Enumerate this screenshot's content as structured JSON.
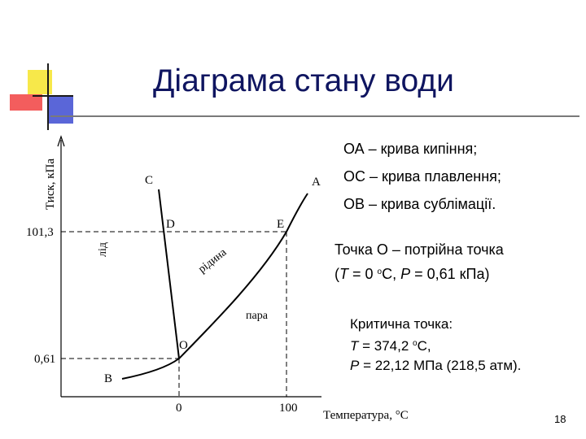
{
  "title": "Діаграма стану води",
  "diagram": {
    "y_axis_label": "Тиск, кПа",
    "x_axis_label": "Температура, °С",
    "y_tick_high": "101,3",
    "y_tick_low": "0,61",
    "x_tick_zero": "0",
    "x_tick_hundred": "100",
    "points": {
      "A": "A",
      "B": "B",
      "C": "C",
      "D": "D",
      "E": "E",
      "O": "O"
    },
    "regions": {
      "ice": "лід",
      "liquid": "рідина",
      "vapor": "пара"
    }
  },
  "legend": {
    "oa": {
      "term": "ОА",
      "rest": " – крива кипіння;"
    },
    "oc": {
      "term": "ОС",
      "rest": " – крива плавлення;"
    },
    "ob": {
      "term": "ОВ",
      "rest": " – крива  сублімації."
    }
  },
  "triple_point": {
    "line1": "Точка О – потрійна точка",
    "open": "(",
    "t_var": "T",
    "t_eq": " = 0 ",
    "deg": "o",
    "t_unit": "С, ",
    "p_var": "P",
    "p_eq": " = 0,61 кПа)"
  },
  "critical_point": {
    "line1": "Критична точка:",
    "t_var": "T",
    "t_eq": " = 374,2 ",
    "deg": "o",
    "t_unit": "С,",
    "p_var": "P",
    "p_eq": " = 22,12 МПа (218,5 атм)."
  },
  "page_number": "18",
  "colors": {
    "title": "#0f1560",
    "deco_yellow": "#f7e84a",
    "deco_red": "#f24b4b",
    "deco_blue": "#5a66d8",
    "deco_lines": "#1a1a1a"
  }
}
